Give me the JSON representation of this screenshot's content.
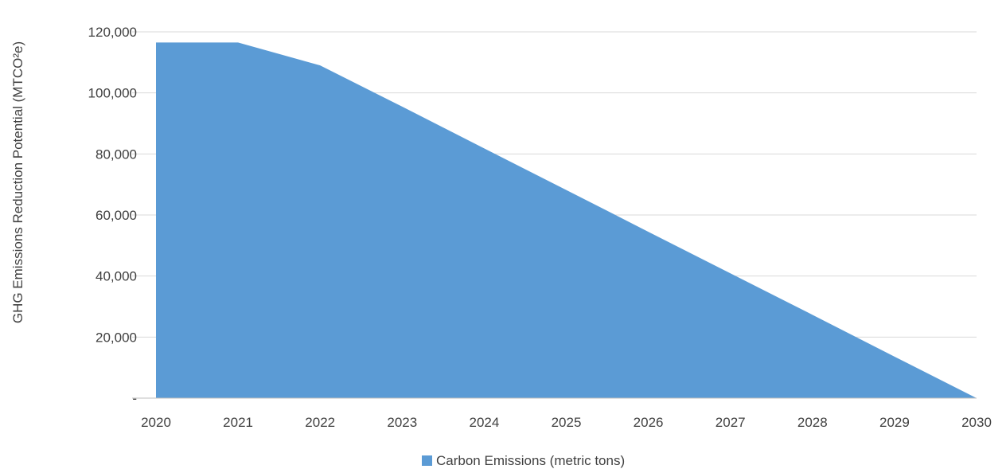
{
  "chart_data": {
    "type": "area",
    "title": "",
    "xlabel": "",
    "ylabel": "GHG Emissions Reduction Potential (MTCO²e)",
    "x": [
      "2020",
      "2021",
      "2022",
      "2023",
      "2024",
      "2025",
      "2026",
      "2027",
      "2028",
      "2029",
      "2030"
    ],
    "series": [
      {
        "name": "Carbon Emissions (metric tons)",
        "color": "#5b9bd5",
        "values": [
          116500,
          116500,
          109000,
          95500,
          81800,
          68200,
          54500,
          40900,
          27300,
          13600,
          0
        ]
      }
    ],
    "ylim": [
      0,
      120000
    ],
    "yticks": [
      {
        "value": 0,
        "label": "-"
      },
      {
        "value": 20000,
        "label": "20,000"
      },
      {
        "value": 40000,
        "label": "40,000"
      },
      {
        "value": 60000,
        "label": "60,000"
      },
      {
        "value": 80000,
        "label": "80,000"
      },
      {
        "value": 100000,
        "label": "100,000"
      },
      {
        "value": 120000,
        "label": "120,000"
      }
    ],
    "grid": true,
    "legend_position": "bottom"
  }
}
